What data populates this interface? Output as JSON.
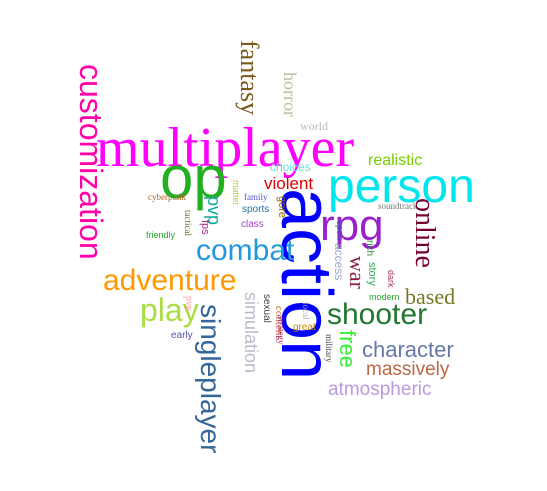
{
  "words": [
    {
      "text": "multiplayer",
      "color": "#ff00ff",
      "font": "serif"
    },
    {
      "text": "action",
      "color": "#0000ff",
      "font": "sans"
    },
    {
      "text": "person",
      "color": "#00e5ee",
      "font": "sans"
    },
    {
      "text": "op",
      "color": "#22b022",
      "font": "sans"
    },
    {
      "text": "customization",
      "color": "#ff00aa",
      "font": "sans"
    },
    {
      "text": "fantasy",
      "color": "#7a5a1a",
      "font": "serif"
    },
    {
      "text": "horror",
      "color": "#b5c2a0",
      "font": "serif"
    },
    {
      "text": "world",
      "color": "#bbbbbb",
      "font": "serif"
    },
    {
      "text": "realistic",
      "color": "#77cc00",
      "font": "sans"
    },
    {
      "text": "choices",
      "color": "#66dddd",
      "font": "sans"
    },
    {
      "text": "violent",
      "color": "#dd0000",
      "font": "sans"
    },
    {
      "text": "cyberpunk",
      "color": "#aa6622",
      "font": "serif"
    },
    {
      "text": "matter",
      "color": "#bbcc44",
      "font": "sans"
    },
    {
      "text": "family",
      "color": "#5555cc",
      "font": "serif"
    },
    {
      "text": "sports",
      "color": "#2277aa",
      "font": "sans"
    },
    {
      "text": "gore",
      "color": "#996600",
      "font": "sans"
    },
    {
      "text": "soundtrack",
      "color": "#777777",
      "font": "serif"
    },
    {
      "text": "rpg",
      "color": "#9922cc",
      "font": "sans"
    },
    {
      "text": "online",
      "color": "#770033",
      "font": "serif"
    },
    {
      "text": "pvp",
      "color": "#11aa99",
      "font": "sans"
    },
    {
      "text": "tactical",
      "color": "#557733",
      "font": "serif"
    },
    {
      "text": "fps",
      "color": "#aa2288",
      "font": "sans"
    },
    {
      "text": "class",
      "color": "#aa44cc",
      "font": "sans"
    },
    {
      "text": "friendly",
      "color": "#22aa22",
      "font": "sans"
    },
    {
      "text": "combat",
      "color": "#2299dd",
      "font": "sans"
    },
    {
      "text": "open",
      "color": "#3366aa",
      "font": "sans"
    },
    {
      "text": "access",
      "color": "#99aacc",
      "font": "sans"
    },
    {
      "text": "rich",
      "color": "#228844",
      "font": "sans"
    },
    {
      "text": "story",
      "color": "#33aa55",
      "font": "sans"
    },
    {
      "text": "dark",
      "color": "#aa3366",
      "font": "sans"
    },
    {
      "text": "war",
      "color": "#8a2040",
      "font": "serif"
    },
    {
      "text": "modern",
      "color": "#22aa22",
      "font": "sans"
    },
    {
      "text": "adventure",
      "color": "#ff9900",
      "font": "sans"
    },
    {
      "text": "based",
      "color": "#777722",
      "font": "serif"
    },
    {
      "text": "play",
      "color": "#aadd44",
      "font": "sans"
    },
    {
      "text": "simulation",
      "color": "#bbbbcc",
      "font": "sans"
    },
    {
      "text": "sexual",
      "color": "#444444",
      "font": "sans"
    },
    {
      "text": "content",
      "color": "#cc6633",
      "font": "serif"
    },
    {
      "text": "strategy",
      "color": "#aa2266",
      "font": "serif"
    },
    {
      "text": "local",
      "color": "#aaaacc",
      "font": "serif"
    },
    {
      "text": "shooter",
      "color": "#227733",
      "font": "sans"
    },
    {
      "text": "great",
      "color": "#cc8800",
      "font": "sans"
    },
    {
      "text": "military",
      "color": "#444444",
      "font": "serif"
    },
    {
      "text": "free",
      "color": "#33ee33",
      "font": "sans"
    },
    {
      "text": "pve",
      "color": "#ff99aa",
      "font": "serif"
    },
    {
      "text": "early",
      "color": "#5555aa",
      "font": "sans"
    },
    {
      "text": "singleplayer",
      "color": "#336699",
      "font": "sans"
    },
    {
      "text": "character",
      "color": "#6677aa",
      "font": "sans"
    },
    {
      "text": "massively",
      "color": "#bb6644",
      "font": "sans"
    },
    {
      "text": "atmospheric",
      "color": "#bb99dd",
      "font": "sans"
    }
  ]
}
